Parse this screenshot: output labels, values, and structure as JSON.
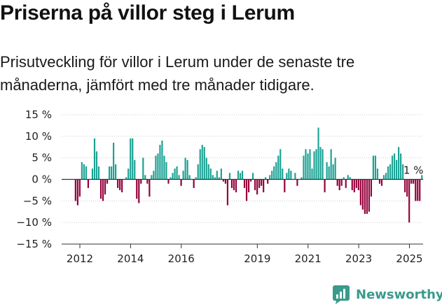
{
  "title": "Priserna på villor steg i Lerum",
  "subtitle": "Prisutveckling för villor i Lerum under de senaste tre månaderna, jämfört med tre månader tidigare.",
  "brand": "Newsworthy",
  "colors": {
    "positive": "#1aa294",
    "negative": "#93003a",
    "grid": "#cccccc",
    "axis": "#333333",
    "brand": "#3a9a8b"
  },
  "chart_data": {
    "type": "bar",
    "title": "Priserna på villor steg i Lerum",
    "xlabel": "",
    "ylabel": "",
    "ylim": [
      -15,
      15
    ],
    "yticks": [
      -15,
      -10,
      -5,
      0,
      5,
      10,
      15
    ],
    "ytick_labels": [
      "−15 %",
      "−10 %",
      "−5 %",
      "0 %",
      "5 %",
      "10 %",
      "15 %"
    ],
    "xticks": [
      2012,
      2014,
      2016,
      2019,
      2021,
      2023,
      2025
    ],
    "x_start": 2011.83,
    "x_step": 0.0833,
    "annotation": {
      "text": "1 %",
      "index": 160
    },
    "values": [
      -5,
      -6,
      -4,
      4,
      3.5,
      3,
      -2,
      0,
      2.5,
      9.5,
      6.5,
      3,
      -4.5,
      -5,
      -3.5,
      -1,
      3,
      3,
      8.5,
      3.5,
      -2,
      -2.5,
      -3,
      0,
      0.5,
      2.5,
      9.5,
      9.5,
      4.5,
      -4.5,
      -5.5,
      -1,
      5,
      1,
      -1,
      -4,
      1,
      2,
      5.5,
      6,
      8,
      9,
      5.5,
      4,
      -1,
      0.5,
      1.5,
      2.5,
      3,
      1,
      -1.5,
      2,
      5,
      4.5,
      1,
      0,
      -2,
      0.5,
      3.5,
      7,
      8,
      7.5,
      5,
      3.5,
      2.5,
      1,
      0.5,
      2,
      0.5,
      2.5,
      -0.5,
      -1,
      -6,
      1.5,
      -2,
      -2.5,
      -3,
      2,
      1.5,
      2,
      -2,
      -5,
      -3,
      -0.5,
      1.5,
      -2.5,
      -3.5,
      -2,
      -1.5,
      -3,
      0.5,
      -1,
      1,
      2,
      3,
      4,
      5.5,
      7,
      2.5,
      -3,
      1.5,
      2.5,
      2,
      0,
      1.5,
      -1.5,
      0,
      0.5,
      5.5,
      7,
      6,
      7,
      2.5,
      6.5,
      7,
      12,
      7.5,
      7,
      -3,
      4,
      3,
      7,
      3.5,
      5,
      -1.5,
      -2.5,
      -1.5,
      0.5,
      -2,
      1,
      0.5,
      -2.5,
      -3,
      -2,
      -2.5,
      -6,
      -7,
      -8,
      -8,
      -7.5,
      -4,
      5.5,
      5.5,
      2.5,
      -1,
      -1.5,
      1,
      1.5,
      3,
      3.5,
      5.5,
      6,
      4.5,
      7.5,
      6,
      3.5,
      -3,
      -4,
      -10,
      -1,
      -1,
      -5,
      -5,
      -5,
      1
    ]
  }
}
